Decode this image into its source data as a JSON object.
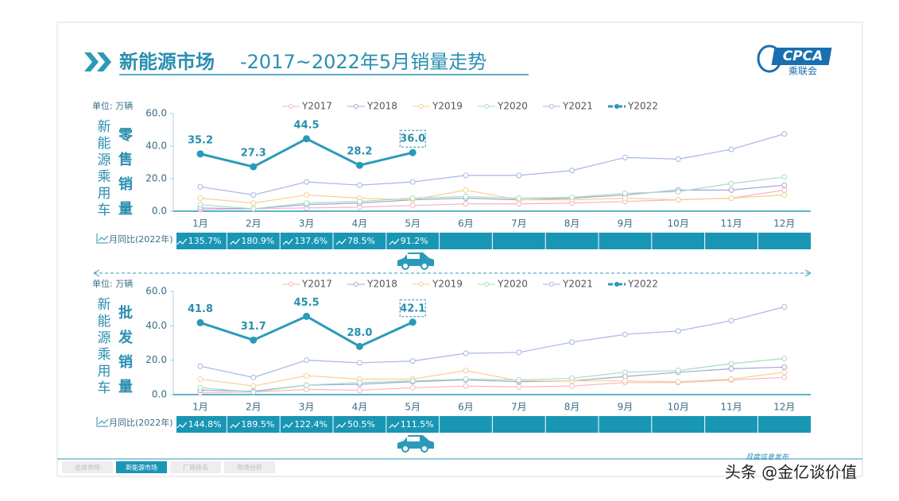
{
  "header": {
    "title_bold": "新能源市场",
    "title_rest": "-2017~2022年5月销量走势",
    "logo": "CPCA",
    "logo_sub": "乘联会"
  },
  "chart_data": [
    {
      "type": "line",
      "unit": "单位: 万辆",
      "side_label": "新能源乘用车",
      "metric_label": "零售销量",
      "categories": [
        "1月",
        "2月",
        "3月",
        "4月",
        "5月",
        "6月",
        "7月",
        "8月",
        "9月",
        "10月",
        "11月",
        "12月"
      ],
      "ylim": [
        0,
        60
      ],
      "yticks": [
        {
          "value": 0,
          "label": "0.0"
        },
        {
          "value": 20,
          "label": "20.0"
        },
        {
          "value": 40,
          "label": "40.0"
        },
        {
          "value": 60,
          "label": "60.0"
        }
      ],
      "series": [
        {
          "name": "Y2017",
          "color": "#f4b6c2",
          "values": [
            1,
            1.5,
            2,
            2.5,
            3.5,
            4.5,
            4.5,
            5,
            6,
            7,
            8,
            13
          ]
        },
        {
          "name": "Y2018",
          "color": "#9fa8da",
          "values": [
            2,
            1.5,
            4,
            5,
            7,
            8,
            7,
            8,
            10,
            13,
            13,
            16
          ]
        },
        {
          "name": "Y2019",
          "color": "#f9cf8f",
          "values": [
            8,
            5,
            10,
            8,
            7,
            13,
            7,
            7,
            8,
            7,
            8,
            10
          ]
        },
        {
          "name": "Y2020",
          "color": "#a8dcc0",
          "values": [
            4,
            1.5,
            5,
            6,
            8,
            9,
            8,
            8.5,
            11,
            12,
            17,
            21
          ]
        },
        {
          "name": "Y2021",
          "color": "#a6b6e6",
          "values": [
            15,
            10,
            18,
            16,
            18,
            22,
            22,
            25,
            33,
            32,
            38,
            47.5
          ]
        },
        {
          "name": "Y2022",
          "color": "#2b9ab8",
          "values": [
            35.2,
            27.3,
            44.5,
            28.2,
            36.0,
            null,
            null,
            null,
            null,
            null,
            null,
            null
          ],
          "value_labels": [
            "35.2",
            "27.3",
            "44.5",
            "28.2",
            "36.0",
            null,
            null,
            null,
            null,
            null,
            null,
            null
          ]
        }
      ],
      "yoy": {
        "label": "月同比(2022年)",
        "values": [
          135.7,
          180.9,
          137.6,
          78.5,
          91.2
        ],
        "value_labels": [
          "135.7%",
          "180.9%",
          "137.6%",
          "78.5%",
          "91.2%"
        ]
      }
    },
    {
      "type": "line",
      "unit": "单位: 万辆",
      "side_label": "新能源乘用车",
      "metric_label": "批发销量",
      "categories": [
        "1月",
        "2月",
        "3月",
        "4月",
        "5月",
        "6月",
        "7月",
        "8月",
        "9月",
        "10月",
        "11月",
        "12月"
      ],
      "ylim": [
        0,
        60
      ],
      "yticks": [
        {
          "value": 0,
          "label": "0.0"
        },
        {
          "value": 20,
          "label": "20.0"
        },
        {
          "value": 40,
          "label": "40.0"
        },
        {
          "value": 60,
          "label": "60.0"
        }
      ],
      "series": [
        {
          "name": "Y2017",
          "color": "#f4b6c2",
          "values": [
            1,
            1.5,
            3,
            2.5,
            4,
            5,
            4.5,
            5,
            7,
            7,
            8.5,
            10
          ]
        },
        {
          "name": "Y2018",
          "color": "#9fa8da",
          "values": [
            2.5,
            2,
            5.5,
            6,
            7.5,
            8.5,
            7.5,
            8,
            10.5,
            13,
            15,
            16
          ]
        },
        {
          "name": "Y2019",
          "color": "#f9cf8f",
          "values": [
            9,
            5,
            11,
            9,
            9,
            14,
            8,
            8,
            8,
            7.5,
            9,
            13
          ]
        },
        {
          "name": "Y2020",
          "color": "#a8dcc0",
          "values": [
            4,
            1.5,
            5.5,
            7,
            8,
            9,
            8.5,
            9.5,
            13,
            14,
            18,
            21
          ]
        },
        {
          "name": "Y2021",
          "color": "#a6b6e6",
          "values": [
            16.5,
            10,
            20,
            18.5,
            19.5,
            24,
            24.5,
            30.5,
            35,
            37,
            43,
            51
          ]
        },
        {
          "name": "Y2022",
          "color": "#2b9ab8",
          "values": [
            41.8,
            31.7,
            45.5,
            28.0,
            42.1,
            null,
            null,
            null,
            null,
            null,
            null,
            null
          ],
          "value_labels": [
            "41.8",
            "31.7",
            "45.5",
            "28.0",
            "42.1",
            null,
            null,
            null,
            null,
            null,
            null,
            null
          ]
        }
      ],
      "yoy": {
        "label": "月同比(2022年)",
        "values": [
          144.8,
          189.5,
          122.4,
          50.5,
          111.5
        ],
        "value_labels": [
          "144.8%",
          "189.5%",
          "122.4%",
          "50.5%",
          "111.5%"
        ]
      }
    }
  ],
  "footer": {
    "tabs": [
      "总体市场",
      "新能源市场",
      "厂商排名",
      "市场分析"
    ],
    "note": "月度信息发布",
    "watermark": "头条 @金亿谈价值"
  }
}
